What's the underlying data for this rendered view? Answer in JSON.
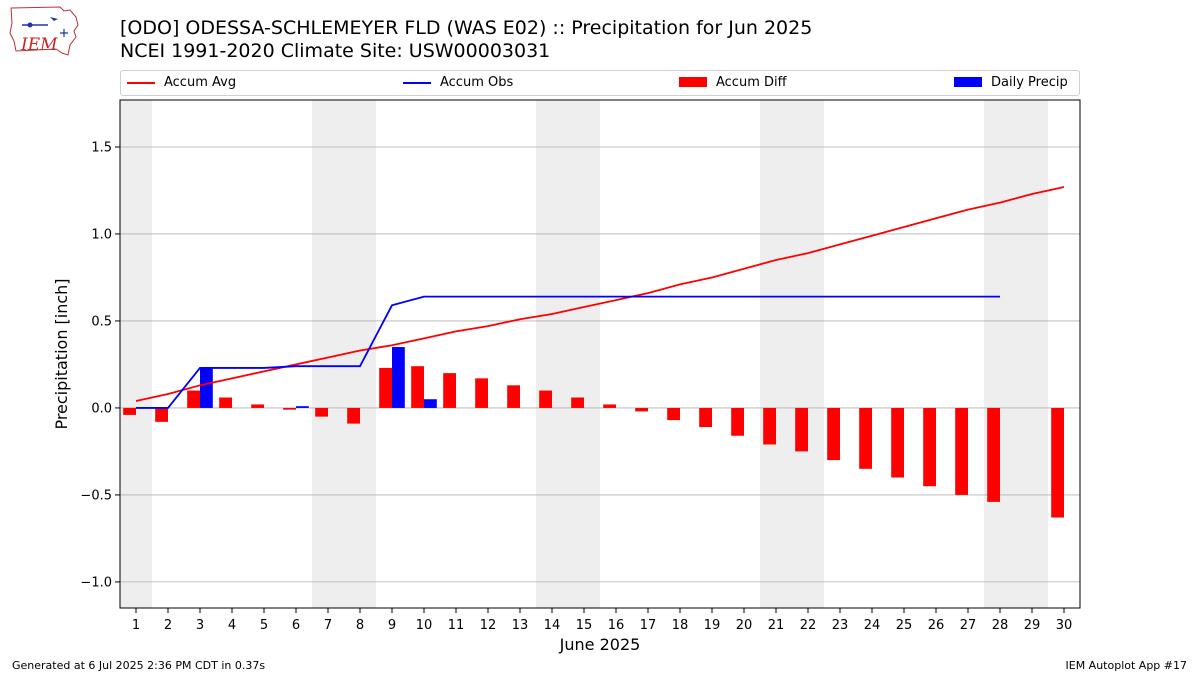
{
  "header": {
    "title": "[ODO] ODESSA-SCHLEMEYER FLD (WAS E02) :: Precipitation for Jun 2025",
    "subtitle": "NCEI 1991-2020 Climate Site: USW00003031",
    "logo_text": "IEM"
  },
  "footer": {
    "generated": "Generated at 6 Jul 2025 2:36 PM CDT in 0.37s",
    "app": "IEM Autoplot App #17"
  },
  "colors": {
    "accum_avg": "#ff0000",
    "accum_obs": "#0000ff",
    "accum_diff": "#ff0000",
    "daily_precip": "#0000ff",
    "weekend_shade": "#eeeeee",
    "grid": "#b0b0b0"
  },
  "chart_data": {
    "type": "bar",
    "xlabel": "June 2025",
    "ylabel": "Precipitation [inch]",
    "ylim": [
      -1.15,
      1.77
    ],
    "xlim": [
      0.5,
      30.5
    ],
    "yticks": [
      -1.0,
      -0.5,
      0.0,
      0.5,
      1.0,
      1.5
    ],
    "ytick_labels": [
      "−1.0",
      "−0.5",
      "0.0",
      "0.5",
      "1.0",
      "1.5"
    ],
    "days": [
      1,
      2,
      3,
      4,
      5,
      6,
      7,
      8,
      9,
      10,
      11,
      12,
      13,
      14,
      15,
      16,
      17,
      18,
      19,
      20,
      21,
      22,
      23,
      24,
      25,
      26,
      27,
      28,
      29,
      30
    ],
    "x_tick_labels": [
      "1",
      "2",
      "3",
      "4",
      "5",
      "6",
      "7",
      "8",
      "9",
      "10",
      "11",
      "12",
      "13",
      "14",
      "15",
      "16",
      "17",
      "18",
      "19",
      "20",
      "21",
      "22",
      "23",
      "24",
      "25",
      "26",
      "27",
      "28",
      "29",
      "30"
    ],
    "grid": "y",
    "legend_position": "top",
    "weekend_shading": [
      [
        0.5,
        1.5
      ],
      [
        6.5,
        8.5
      ],
      [
        13.5,
        15.5
      ],
      [
        20.5,
        22.5
      ],
      [
        27.5,
        29.5
      ]
    ],
    "series": [
      {
        "name": "Accum Avg",
        "kind": "line",
        "x": [
          1,
          2,
          3,
          4,
          5,
          6,
          7,
          8,
          9,
          10,
          11,
          12,
          13,
          14,
          15,
          16,
          17,
          18,
          19,
          20,
          21,
          22,
          23,
          24,
          25,
          26,
          27,
          28,
          29,
          30
        ],
        "values": [
          0.04,
          0.08,
          0.13,
          0.17,
          0.21,
          0.25,
          0.29,
          0.33,
          0.36,
          0.4,
          0.44,
          0.47,
          0.51,
          0.54,
          0.58,
          0.62,
          0.66,
          0.71,
          0.75,
          0.8,
          0.85,
          0.89,
          0.94,
          0.99,
          1.04,
          1.09,
          1.14,
          1.18,
          1.23,
          1.27
        ]
      },
      {
        "name": "Accum Obs",
        "kind": "line",
        "x": [
          1,
          2,
          3,
          4,
          5,
          6,
          7,
          8,
          9,
          10,
          11,
          12,
          13,
          14,
          15,
          16,
          17,
          18,
          19,
          20,
          21,
          22,
          23,
          24,
          25,
          26,
          27,
          28
        ],
        "values": [
          0.0,
          0.0,
          0.23,
          0.23,
          0.23,
          0.24,
          0.24,
          0.24,
          0.59,
          0.64,
          0.64,
          0.64,
          0.64,
          0.64,
          0.64,
          0.64,
          0.64,
          0.64,
          0.64,
          0.64,
          0.64,
          0.64,
          0.64,
          0.64,
          0.64,
          0.64,
          0.64,
          0.64
        ]
      },
      {
        "name": "Accum Diff",
        "kind": "bar",
        "x": [
          1,
          2,
          3,
          4,
          5,
          6,
          7,
          8,
          9,
          10,
          11,
          12,
          13,
          14,
          15,
          16,
          17,
          18,
          19,
          20,
          21,
          22,
          23,
          24,
          25,
          26,
          27,
          28,
          30
        ],
        "values": [
          -0.04,
          -0.08,
          0.1,
          0.06,
          0.02,
          -0.01,
          -0.05,
          -0.09,
          0.23,
          0.24,
          0.2,
          0.17,
          0.13,
          0.1,
          0.06,
          0.02,
          -0.02,
          -0.07,
          -0.11,
          -0.16,
          -0.21,
          -0.25,
          -0.3,
          -0.35,
          -0.4,
          -0.45,
          -0.5,
          -0.54,
          -0.63
        ]
      },
      {
        "name": "Daily Precip",
        "kind": "bar",
        "x": [
          3,
          6,
          9,
          10
        ],
        "values": [
          0.23,
          0.01,
          0.35,
          0.05
        ]
      }
    ]
  }
}
